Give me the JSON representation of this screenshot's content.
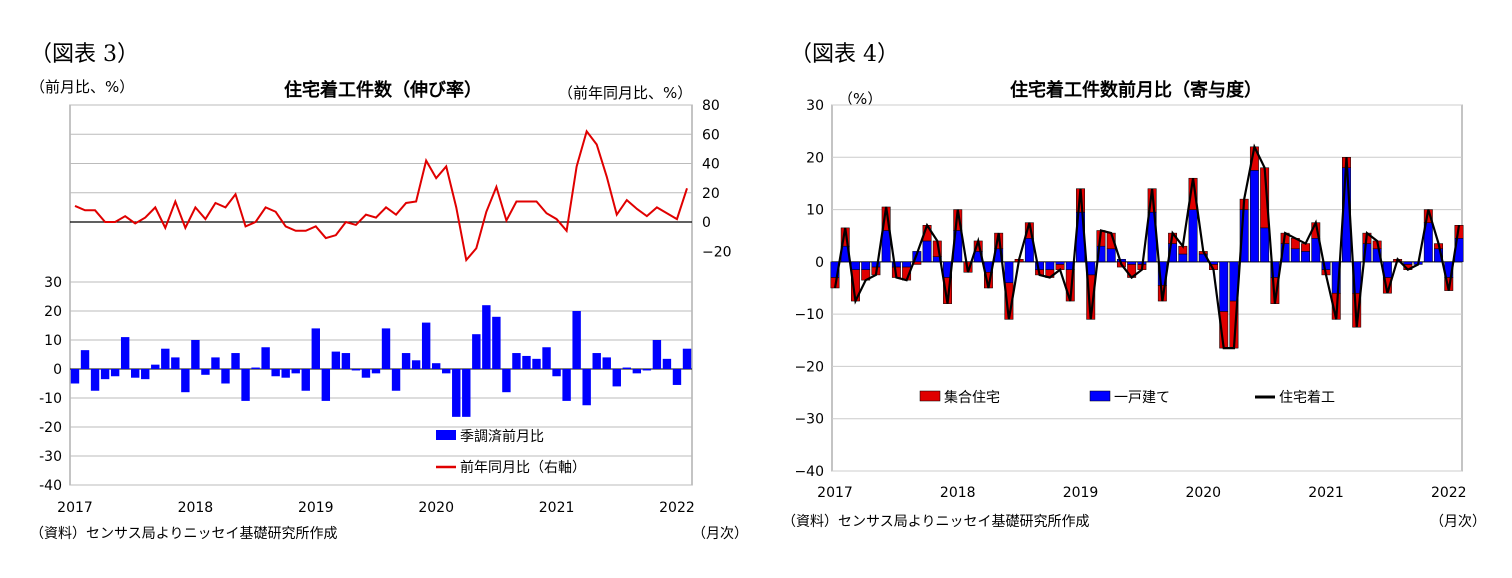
{
  "charts": [
    {
      "figure_label": "（図表 3）",
      "title": "住宅着工件数（伸び率）",
      "left_unit": "（前月比、%）",
      "right_unit": "（前年同月比、%）",
      "source": "（資料）センサス局よりニッセイ基礎研究所作成",
      "x_unit": "（月次）"
    },
    {
      "figure_label": "（図表 4）",
      "title": "住宅着工件数前月比（寄与度）",
      "left_unit": "（%）",
      "source": "（資料）センサス局よりニッセイ基礎研究所作成",
      "x_unit": "（月次）"
    }
  ],
  "chart_data": [
    {
      "type": "bar",
      "x_labels": [
        "2017",
        "2018",
        "2019",
        "2020",
        "2021",
        "2022"
      ],
      "y_left": {
        "ticks": [
          30,
          20,
          10,
          0,
          -10,
          -20,
          -30,
          -40
        ],
        "range": [
          -40,
          30
        ]
      },
      "y_right": {
        "ticks": [
          80,
          60,
          40,
          20,
          0,
          -20
        ],
        "range": [
          -20,
          80
        ]
      },
      "legend": [
        "季調済前月比",
        "前年同月比（右軸）"
      ],
      "series": [
        {
          "name": "季調済前月比",
          "type": "bar",
          "color": "#0000ff",
          "values": [
            -5,
            6.5,
            -7.5,
            -3.5,
            -2.5,
            11,
            -3,
            -3.5,
            1.5,
            7,
            4,
            -8,
            10,
            -2,
            4,
            -5,
            5.5,
            -11,
            0.5,
            7.5,
            -2.5,
            -3,
            -1.5,
            -7.5,
            14,
            -11,
            6,
            5.5,
            -0.5,
            -3,
            -1.5,
            14,
            -7.5,
            5.5,
            3,
            16,
            2,
            -1.5,
            -16.5,
            -16.5,
            12,
            22,
            18,
            -8,
            5.5,
            4.5,
            3.5,
            7.5,
            -2.5,
            -11,
            20,
            -12.5,
            5.5,
            4,
            -6,
            0.5,
            -1.5,
            -0.5,
            10,
            3.5,
            -5.5,
            7
          ]
        },
        {
          "name": "前年同月比（右軸）",
          "type": "line",
          "color": "#e00000",
          "values": [
            11,
            8,
            8,
            0,
            0,
            4,
            -1,
            3,
            10,
            -4,
            14,
            -4,
            10,
            2,
            13,
            10,
            19,
            -3,
            0,
            10,
            7,
            -3,
            -6,
            -6,
            -3,
            -11,
            -9,
            0,
            -2,
            5,
            3,
            10,
            5,
            13,
            14,
            42,
            30,
            38,
            10,
            -26,
            -18,
            7,
            24,
            1,
            14,
            14,
            14,
            6,
            2,
            -6,
            38,
            62,
            53,
            31,
            5,
            15,
            9,
            4,
            10,
            6,
            2,
            23
          ]
        }
      ]
    },
    {
      "type": "bar",
      "stacked": true,
      "x_labels": [
        "2017",
        "2018",
        "2019",
        "2020",
        "2021",
        "2022"
      ],
      "y_left": {
        "ticks": [
          30,
          20,
          10,
          0,
          -10,
          -20,
          -30,
          -40
        ],
        "range": [
          -40,
          30
        ]
      },
      "legend": [
        "集合住宅",
        "一戸建て",
        "住宅着工"
      ],
      "series": [
        {
          "name": "集合住宅",
          "type": "bar",
          "color": "#e00000",
          "values": [
            -2,
            3.5,
            -6,
            -2,
            -1.5,
            4.5,
            -2,
            -2.5,
            -0.5,
            3,
            3,
            -5,
            4,
            -2,
            2,
            -3,
            3,
            -7,
            0.5,
            3,
            -1,
            -1.5,
            -1,
            -6,
            4.5,
            -8.5,
            3,
            3,
            -1,
            -2.5,
            -1,
            4.5,
            -3,
            2,
            1.5,
            6,
            0.5,
            -1,
            -7,
            -9,
            2,
            4.5,
            11.5,
            -5,
            2,
            2,
            1.5,
            3,
            -1,
            -5,
            2,
            -6.5,
            2,
            1.5,
            -3,
            0.5,
            -1,
            0,
            2.5,
            1,
            -2.5,
            2.5
          ]
        },
        {
          "name": "一戸建て",
          "type": "bar",
          "color": "#0000ff",
          "values": [
            -3,
            3,
            -1.5,
            -1.5,
            -1,
            6,
            -1,
            -1,
            2,
            4,
            1,
            -3,
            6,
            0,
            2,
            -2,
            2.5,
            -4,
            0,
            4.5,
            -1.5,
            -1.5,
            -0.5,
            -1.5,
            9.5,
            -2.5,
            3,
            2.5,
            0.5,
            -0.5,
            -0.5,
            9.5,
            -4.5,
            3.5,
            1.5,
            10,
            1.5,
            -0.5,
            -9.5,
            -7.5,
            10,
            17.5,
            6.5,
            -3,
            3.5,
            2.5,
            2,
            4.5,
            -1.5,
            -6,
            18,
            -6,
            3.5,
            2.5,
            -3,
            0,
            -0.5,
            -0.5,
            7.5,
            2.5,
            -3,
            4.5
          ]
        },
        {
          "name": "住宅着工",
          "type": "line",
          "color": "#000000",
          "values": [
            -5,
            6.5,
            -7.5,
            -3.5,
            -2.5,
            10.5,
            -3,
            -3.5,
            1.5,
            7,
            4,
            -8,
            10,
            -2,
            4,
            -5,
            5.5,
            -11,
            0.5,
            7.5,
            -2.5,
            -3,
            -1.5,
            -7.5,
            14,
            -11,
            6,
            5.5,
            -0.5,
            -3,
            -1.5,
            14,
            -7.5,
            5.5,
            3,
            16,
            2,
            -1.5,
            -16.5,
            -16.5,
            12,
            22,
            18,
            -8,
            5.5,
            4.5,
            3.5,
            7.5,
            -2.5,
            -11,
            20,
            -12.5,
            5.5,
            4,
            -6,
            0.5,
            -1.5,
            -0.5,
            10,
            3.5,
            -5.5,
            7
          ]
        }
      ]
    }
  ]
}
